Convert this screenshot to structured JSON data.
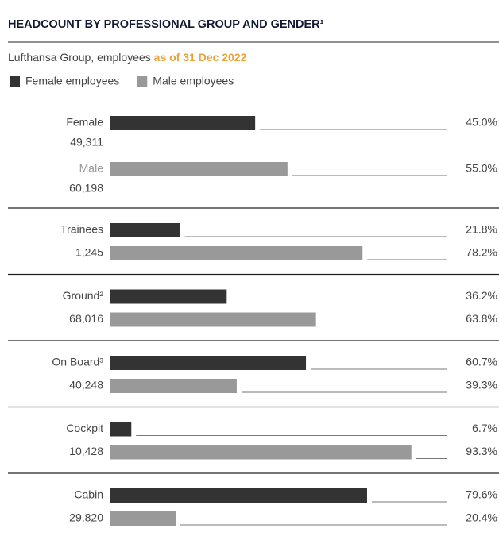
{
  "chart_data": {
    "type": "bar",
    "title": "HEADCOUNT BY PROFESSIONAL GROUP AND GENDER¹",
    "subtitle": "Lufthansa Group, employees ",
    "subtitle_highlight": "as of 31 Dec 2022",
    "categories": [
      "Female",
      "Male",
      "Trainees",
      "Ground²",
      "On Board³",
      "Cockpit",
      "Cabin"
    ],
    "totals": [
      "49,311",
      "60,198",
      "1,245",
      "68,016",
      "40,248",
      "10,428",
      "29,820"
    ],
    "xlim": [
      0,
      100
    ],
    "series": [
      {
        "name": "Female employees",
        "color": "#333333",
        "values": [
          45.0,
          null,
          21.8,
          36.2,
          60.7,
          6.7,
          79.6
        ],
        "value_labels": [
          "45.0%",
          null,
          "21.8%",
          "36.2%",
          "60.7%",
          "6.7%",
          "79.6%"
        ]
      },
      {
        "name": "Male employees",
        "color": "#999999",
        "values": [
          null,
          55.0,
          78.2,
          63.8,
          39.3,
          93.3,
          20.4
        ],
        "value_labels": [
          null,
          "55.0%",
          "78.2%",
          "63.8%",
          "39.3%",
          "93.3%",
          "20.4%"
        ]
      }
    ]
  }
}
